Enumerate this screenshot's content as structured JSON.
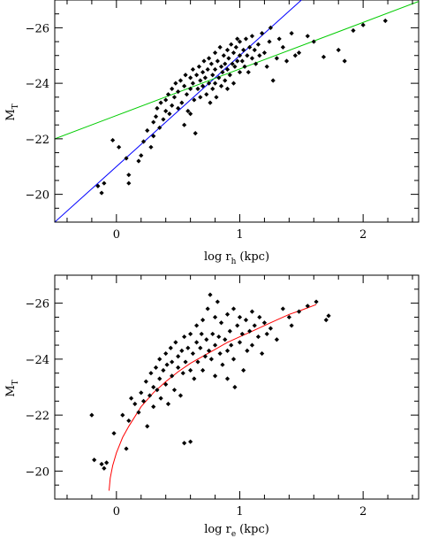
{
  "chart_data": [
    {
      "type": "scatter",
      "xlabel_main": "log r",
      "xlabel_sub": "h",
      "xlabel_unit": "(kpc)",
      "ylabel_main": "M",
      "ylabel_sub": "T",
      "xlim": [
        -0.5,
        2.45
      ],
      "ylim": [
        -19,
        -27
      ],
      "x_ticks": [
        0,
        1,
        2
      ],
      "x_tick_labels": [
        "0",
        "1",
        "2"
      ],
      "y_ticks": [
        -20,
        -22,
        -24,
        -26
      ],
      "y_tick_labels": [
        "−20",
        "−22",
        "−24",
        "−26"
      ],
      "lines": [
        {
          "color": "#0000ff",
          "x": [
            -0.5,
            1.5
          ],
          "y": [
            -19.0,
            -27.0
          ]
        },
        {
          "color": "#00cc00",
          "x": [
            -0.5,
            2.45
          ],
          "y": [
            -22.0,
            -26.95
          ]
        }
      ],
      "series": [
        {
          "marker": "diamond",
          "color": "#000000",
          "points": [
            [
              -0.15,
              -20.3
            ],
            [
              -0.12,
              -20.05
            ],
            [
              -0.1,
              -20.4
            ],
            [
              -0.03,
              -21.95
            ],
            [
              0.02,
              -21.7
            ],
            [
              0.08,
              -21.3
            ],
            [
              0.1,
              -20.4
            ],
            [
              0.1,
              -20.7
            ],
            [
              0.18,
              -21.2
            ],
            [
              0.2,
              -21.4
            ],
            [
              0.22,
              -21.9
            ],
            [
              0.25,
              -22.3
            ],
            [
              0.28,
              -21.7
            ],
            [
              0.3,
              -22.6
            ],
            [
              0.3,
              -22.1
            ],
            [
              0.32,
              -22.8
            ],
            [
              0.33,
              -23.1
            ],
            [
              0.35,
              -22.4
            ],
            [
              0.36,
              -23.3
            ],
            [
              0.38,
              -22.7
            ],
            [
              0.4,
              -23.0
            ],
            [
              0.4,
              -23.4
            ],
            [
              0.42,
              -23.6
            ],
            [
              0.43,
              -22.9
            ],
            [
              0.45,
              -23.8
            ],
            [
              0.45,
              -23.2
            ],
            [
              0.47,
              -23.5
            ],
            [
              0.48,
              -24.0
            ],
            [
              0.5,
              -23.1
            ],
            [
              0.5,
              -23.7
            ],
            [
              0.52,
              -24.1
            ],
            [
              0.53,
              -23.3
            ],
            [
              0.55,
              -23.9
            ],
            [
              0.55,
              -22.5
            ],
            [
              0.56,
              -24.3
            ],
            [
              0.57,
              -23.6
            ],
            [
              0.58,
              -23.0
            ],
            [
              0.6,
              -24.2
            ],
            [
              0.6,
              -23.8
            ],
            [
              0.6,
              -22.9
            ],
            [
              0.62,
              -24.5
            ],
            [
              0.62,
              -24.0
            ],
            [
              0.63,
              -23.4
            ],
            [
              0.64,
              -22.2
            ],
            [
              0.65,
              -24.3
            ],
            [
              0.66,
              -23.8
            ],
            [
              0.67,
              -24.6
            ],
            [
              0.68,
              -24.1
            ],
            [
              0.68,
              -23.5
            ],
            [
              0.7,
              -24.4
            ],
            [
              0.7,
              -23.9
            ],
            [
              0.71,
              -24.8
            ],
            [
              0.72,
              -24.2
            ],
            [
              0.73,
              -23.6
            ],
            [
              0.74,
              -24.5
            ],
            [
              0.75,
              -24.9
            ],
            [
              0.75,
              -24.0
            ],
            [
              0.76,
              -23.3
            ],
            [
              0.77,
              -24.7
            ],
            [
              0.78,
              -24.3
            ],
            [
              0.78,
              -23.8
            ],
            [
              0.8,
              -25.1
            ],
            [
              0.8,
              -24.5
            ],
            [
              0.8,
              -24.0
            ],
            [
              0.81,
              -23.5
            ],
            [
              0.82,
              -24.8
            ],
            [
              0.83,
              -24.2
            ],
            [
              0.84,
              -25.3
            ],
            [
              0.85,
              -24.6
            ],
            [
              0.85,
              -23.9
            ],
            [
              0.86,
              -24.4
            ],
            [
              0.87,
              -25.0
            ],
            [
              0.88,
              -24.1
            ],
            [
              0.88,
              -24.7
            ],
            [
              0.9,
              -25.2
            ],
            [
              0.9,
              -24.5
            ],
            [
              0.9,
              -23.8
            ],
            [
              0.91,
              -24.9
            ],
            [
              0.92,
              -24.3
            ],
            [
              0.93,
              -25.4
            ],
            [
              0.94,
              -24.7
            ],
            [
              0.95,
              -25.1
            ],
            [
              0.95,
              -24.0
            ],
            [
              0.96,
              -24.6
            ],
            [
              0.97,
              -25.3
            ],
            [
              0.98,
              -24.8
            ],
            [
              0.98,
              -25.6
            ],
            [
              1.0,
              -25.0
            ],
            [
              1.0,
              -24.4
            ],
            [
              1.0,
              -25.5
            ],
            [
              1.02,
              -24.8
            ],
            [
              1.03,
              -25.2
            ],
            [
              1.04,
              -24.6
            ],
            [
              1.05,
              -25.6
            ],
            [
              1.06,
              -25.0
            ],
            [
              1.07,
              -24.4
            ],
            [
              1.08,
              -25.3
            ],
            [
              1.1,
              -24.9
            ],
            [
              1.1,
              -25.7
            ],
            [
              1.12,
              -25.2
            ],
            [
              1.13,
              -24.7
            ],
            [
              1.15,
              -25.4
            ],
            [
              1.16,
              -25.0
            ],
            [
              1.18,
              -25.8
            ],
            [
              1.2,
              -25.1
            ],
            [
              1.22,
              -24.6
            ],
            [
              1.24,
              -25.5
            ],
            [
              1.25,
              -26.0
            ],
            [
              1.27,
              -24.1
            ],
            [
              1.3,
              -24.9
            ],
            [
              1.32,
              -25.6
            ],
            [
              1.35,
              -25.3
            ],
            [
              1.38,
              -24.8
            ],
            [
              1.42,
              -25.8
            ],
            [
              1.45,
              -25.0
            ],
            [
              1.48,
              -25.1
            ],
            [
              1.55,
              -25.7
            ],
            [
              1.6,
              -25.5
            ],
            [
              1.68,
              -24.95
            ],
            [
              1.8,
              -25.2
            ],
            [
              1.85,
              -24.8
            ],
            [
              1.92,
              -25.9
            ],
            [
              2.0,
              -26.1
            ],
            [
              2.18,
              -26.25
            ]
          ]
        }
      ]
    },
    {
      "type": "scatter",
      "xlabel_main": "log r",
      "xlabel_sub": "e",
      "xlabel_unit": "(kpc)",
      "ylabel_main": "M",
      "ylabel_sub": "T",
      "xlim": [
        -0.5,
        2.45
      ],
      "ylim": [
        -19,
        -27
      ],
      "x_ticks": [
        0,
        1,
        2
      ],
      "x_tick_labels": [
        "0",
        "1",
        "2"
      ],
      "y_ticks": [
        -20,
        -22,
        -24,
        -26
      ],
      "y_tick_labels": [
        "−20",
        "−22",
        "−24",
        "−26"
      ],
      "lines": [
        {
          "color": "#ff0000",
          "x": [
            -0.06,
            -0.05,
            -0.03,
            0.0,
            0.05,
            0.1,
            0.2,
            0.3,
            0.4,
            0.5,
            0.6,
            0.7,
            0.8,
            0.9,
            1.0,
            1.1,
            1.2,
            1.3,
            1.4,
            1.5,
            1.62
          ],
          "y": [
            -19.3,
            -19.75,
            -20.2,
            -20.65,
            -21.2,
            -21.6,
            -22.3,
            -22.8,
            -23.2,
            -23.55,
            -23.85,
            -24.1,
            -24.35,
            -24.6,
            -24.8,
            -25.0,
            -25.2,
            -25.4,
            -25.6,
            -25.75,
            -25.95
          ]
        }
      ],
      "series": [
        {
          "marker": "diamond",
          "color": "#000000",
          "points": [
            [
              -0.2,
              -22.0
            ],
            [
              -0.18,
              -20.4
            ],
            [
              -0.12,
              -20.25
            ],
            [
              -0.1,
              -20.1
            ],
            [
              -0.08,
              -20.3
            ],
            [
              -0.02,
              -21.35
            ],
            [
              0.05,
              -22.0
            ],
            [
              0.08,
              -20.8
            ],
            [
              0.1,
              -21.8
            ],
            [
              0.12,
              -22.6
            ],
            [
              0.15,
              -22.4
            ],
            [
              0.18,
              -22.1
            ],
            [
              0.2,
              -22.8
            ],
            [
              0.22,
              -22.5
            ],
            [
              0.24,
              -23.2
            ],
            [
              0.25,
              -21.6
            ],
            [
              0.27,
              -22.7
            ],
            [
              0.28,
              -23.5
            ],
            [
              0.3,
              -23.0
            ],
            [
              0.3,
              -22.3
            ],
            [
              0.32,
              -23.7
            ],
            [
              0.33,
              -22.9
            ],
            [
              0.35,
              -23.3
            ],
            [
              0.35,
              -24.0
            ],
            [
              0.36,
              -22.6
            ],
            [
              0.38,
              -23.6
            ],
            [
              0.4,
              -24.2
            ],
            [
              0.4,
              -23.1
            ],
            [
              0.41,
              -23.8
            ],
            [
              0.42,
              -22.4
            ],
            [
              0.44,
              -24.4
            ],
            [
              0.45,
              -23.4
            ],
            [
              0.45,
              -23.9
            ],
            [
              0.47,
              -22.9
            ],
            [
              0.48,
              -24.6
            ],
            [
              0.5,
              -23.7
            ],
            [
              0.5,
              -24.1
            ],
            [
              0.52,
              -22.7
            ],
            [
              0.53,
              -24.3
            ],
            [
              0.54,
              -23.5
            ],
            [
              0.55,
              -24.8
            ],
            [
              0.55,
              -21.0
            ],
            [
              0.56,
              -23.9
            ],
            [
              0.58,
              -24.4
            ],
            [
              0.6,
              -23.6
            ],
            [
              0.6,
              -24.9
            ],
            [
              0.6,
              -21.05
            ],
            [
              0.62,
              -24.2
            ],
            [
              0.63,
              -23.3
            ],
            [
              0.65,
              -24.6
            ],
            [
              0.65,
              -25.2
            ],
            [
              0.66,
              -23.9
            ],
            [
              0.68,
              -24.4
            ],
            [
              0.69,
              -24.9
            ],
            [
              0.7,
              -23.6
            ],
            [
              0.7,
              -25.4
            ],
            [
              0.72,
              -24.1
            ],
            [
              0.73,
              -24.7
            ],
            [
              0.74,
              -25.8
            ],
            [
              0.75,
              -24.3
            ],
            [
              0.76,
              -26.3
            ],
            [
              0.77,
              -24.0
            ],
            [
              0.78,
              -24.9
            ],
            [
              0.8,
              -25.5
            ],
            [
              0.8,
              -24.5
            ],
            [
              0.8,
              -23.4
            ],
            [
              0.82,
              -26.05
            ],
            [
              0.83,
              -24.8
            ],
            [
              0.84,
              -24.2
            ],
            [
              0.85,
              -25.3
            ],
            [
              0.86,
              -23.8
            ],
            [
              0.88,
              -24.7
            ],
            [
              0.9,
              -25.6
            ],
            [
              0.9,
              -24.3
            ],
            [
              0.9,
              -23.3
            ],
            [
              0.92,
              -25.0
            ],
            [
              0.93,
              -24.5
            ],
            [
              0.95,
              -25.8
            ],
            [
              0.95,
              -24.0
            ],
            [
              0.96,
              -23.0
            ],
            [
              0.98,
              -25.2
            ],
            [
              1.0,
              -24.6
            ],
            [
              1.0,
              -25.5
            ],
            [
              1.02,
              -24.9
            ],
            [
              1.03,
              -23.6
            ],
            [
              1.05,
              -25.4
            ],
            [
              1.06,
              -24.3
            ],
            [
              1.08,
              -25.0
            ],
            [
              1.1,
              -25.7
            ],
            [
              1.1,
              -24.5
            ],
            [
              1.12,
              -25.2
            ],
            [
              1.15,
              -24.8
            ],
            [
              1.16,
              -25.5
            ],
            [
              1.18,
              -24.2
            ],
            [
              1.2,
              -25.3
            ],
            [
              1.22,
              -24.9
            ],
            [
              1.25,
              -25.1
            ],
            [
              1.3,
              -24.7
            ],
            [
              1.35,
              -25.8
            ],
            [
              1.4,
              -25.5
            ],
            [
              1.42,
              -25.2
            ],
            [
              1.48,
              -25.7
            ],
            [
              1.55,
              -25.9
            ],
            [
              1.62,
              -26.05
            ],
            [
              1.7,
              -25.4
            ],
            [
              1.72,
              -25.55
            ]
          ]
        }
      ]
    }
  ]
}
